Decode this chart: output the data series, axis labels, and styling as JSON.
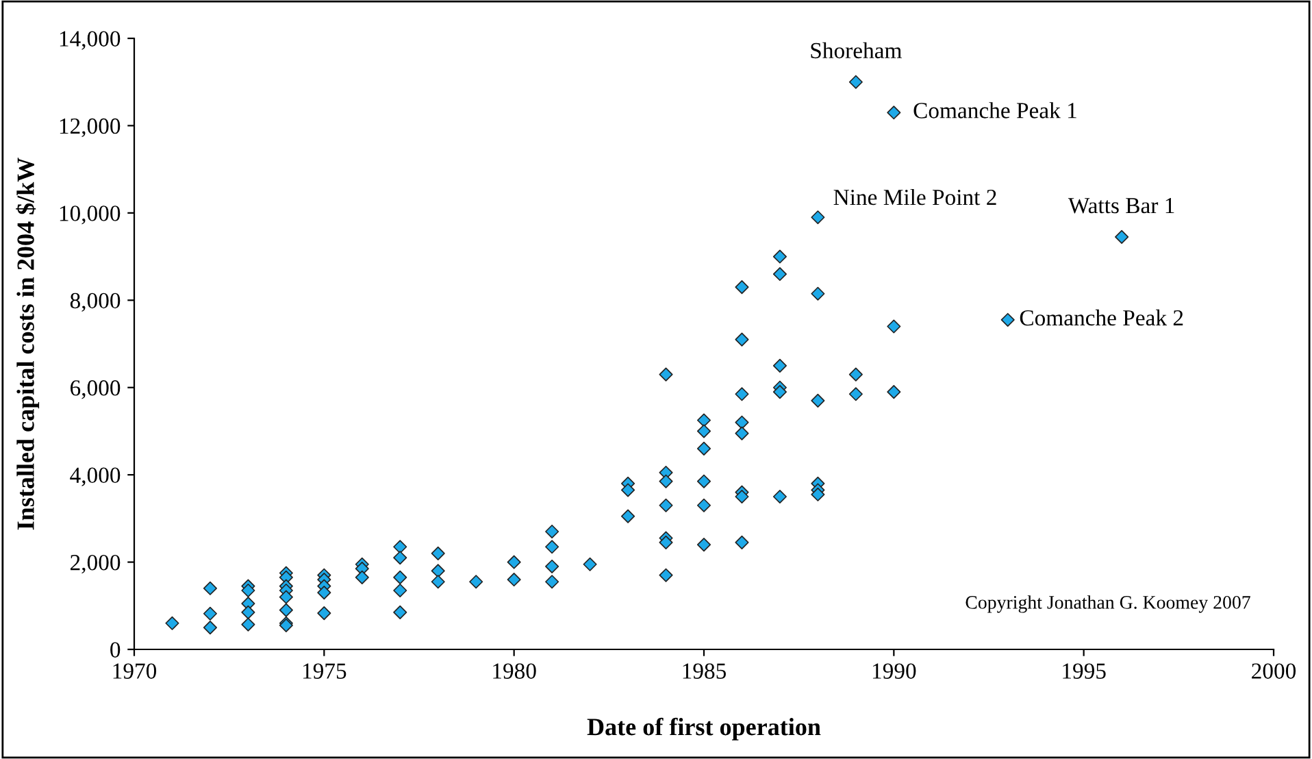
{
  "chart_data": {
    "type": "scatter",
    "xlabel": "Date of first operation",
    "ylabel": "Installed capital costs in 2004 $/kW",
    "marker": "diamond",
    "grid": false,
    "xlim": [
      1970,
      2000
    ],
    "xticks": [
      1970,
      1975,
      1980,
      1985,
      1990,
      1995,
      2000
    ],
    "ylim": [
      0,
      14000
    ],
    "yticks": [
      0,
      {
        "value": 2000,
        "label": "2,000"
      },
      {
        "value": 4000,
        "label": "4,000"
      },
      {
        "value": 6000,
        "label": "6,000"
      },
      {
        "value": 8000,
        "label": "8,000"
      },
      {
        "value": 10000,
        "label": "10,000"
      },
      {
        "value": 12000,
        "label": "12,000"
      },
      {
        "value": 14000,
        "label": "14,000"
      }
    ],
    "series": [
      {
        "color": "#1ea9e8",
        "x": [
          1971,
          1972,
          1972,
          1972,
          1973,
          1973,
          1973,
          1973,
          1973,
          1974,
          1974,
          1974,
          1974,
          1974,
          1974,
          1974,
          1974,
          1975,
          1975,
          1975,
          1975,
          1975,
          1976,
          1976,
          1976,
          1977,
          1977,
          1977,
          1977,
          1977,
          1978,
          1978,
          1978,
          1979,
          1980,
          1980,
          1981,
          1981,
          1981,
          1981,
          1982,
          1983,
          1983,
          1983,
          1984,
          1984,
          1984,
          1984,
          1984,
          1984,
          1984,
          1985,
          1985,
          1985,
          1985,
          1985,
          1985,
          1986,
          1986,
          1986,
          1986,
          1986,
          1986,
          1986,
          1986,
          1987,
          1987,
          1987,
          1987,
          1987,
          1987,
          1988,
          1988,
          1988,
          1988,
          1988,
          1988,
          1989,
          1989,
          1989,
          1990,
          1990,
          1990,
          1993,
          1996
        ],
        "values": [
          600,
          1400,
          820,
          500,
          1450,
          1350,
          1050,
          850,
          570,
          1750,
          1650,
          1450,
          1350,
          1200,
          900,
          600,
          550,
          1700,
          1600,
          1450,
          1300,
          830,
          1950,
          1850,
          1650,
          2350,
          2100,
          1650,
          1350,
          850,
          2200,
          1800,
          1550,
          1550,
          2000,
          1600,
          2700,
          2350,
          1900,
          1550,
          1950,
          3800,
          3650,
          3050,
          6300,
          4050,
          3850,
          3300,
          2550,
          2450,
          1700,
          5250,
          5000,
          4600,
          3850,
          3300,
          2400,
          8300,
          7100,
          5850,
          5200,
          4950,
          3600,
          3500,
          2450,
          9000,
          8600,
          6500,
          6000,
          5900,
          3500,
          9900,
          8150,
          5700,
          3800,
          3650,
          3550,
          13000,
          6300,
          5850,
          12300,
          7400,
          5900,
          7550,
          9450
        ]
      }
    ],
    "annotations": [
      {
        "text": "Shoreham",
        "x": 1989,
        "y": 13000
      },
      {
        "text": "Comanche Peak 1",
        "x": 1990,
        "y": 12300
      },
      {
        "text": "Nine Mile Point 2",
        "x": 1988,
        "y": 9900
      },
      {
        "text": "Watts Bar 1",
        "x": 1996,
        "y": 9450
      },
      {
        "text": "Comanche Peak 2",
        "x": 1993,
        "y": 7550
      },
      "Copyright Jonathan G. Koomey 2007"
    ]
  }
}
